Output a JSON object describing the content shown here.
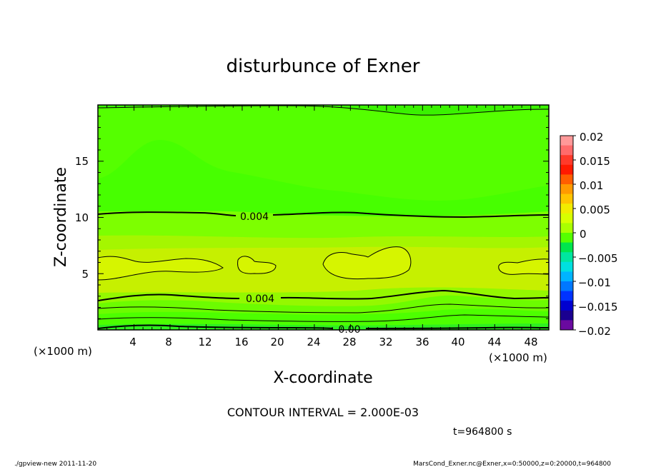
{
  "chart_data": {
    "type": "heatmap",
    "title": "disturbunce of Exner",
    "xlabel": "X-coordinate",
    "ylabel": "Z-coordinate",
    "x_unit": "(×1000 m)",
    "y_unit": "(×1000 m)",
    "xlim": [
      0,
      50
    ],
    "ylim": [
      0,
      20
    ],
    "x_ticks": [
      "4",
      "8",
      "12",
      "16",
      "20",
      "24",
      "28",
      "32",
      "36",
      "40",
      "44",
      "48"
    ],
    "y_ticks": [
      "5",
      "10",
      "15"
    ],
    "colorbar": {
      "range": [
        -0.02,
        0.02
      ],
      "tick_labels": [
        "0.02",
        "0.015",
        "0.01",
        "0.005",
        "0",
        "−0.005",
        "−0.01",
        "−0.015",
        "−0.02"
      ],
      "colors": [
        "#ff9999",
        "#ff6b6b",
        "#ff3a2a",
        "#ff1a00",
        "#ff5e00",
        "#ff9a00",
        "#ffc400",
        "#f2ec00",
        "#d8ff00",
        "#aaff00",
        "#55ff00",
        "#00e64d",
        "#00e6a0",
        "#00e0e0",
        "#00b4ff",
        "#0078ff",
        "#0033ff",
        "#0000d0",
        "#1a0090",
        "#6a0aa0"
      ]
    },
    "bands": [
      {
        "z": [
          0,
          0.35
        ],
        "value": -0.001
      },
      {
        "z": [
          0.35,
          0.9
        ],
        "value": 0.0
      },
      {
        "z": [
          0.9,
          1.6
        ],
        "value": 0.0012
      },
      {
        "z": [
          1.6,
          2.5
        ],
        "value": 0.002
      },
      {
        "z": [
          2.5,
          4.3
        ],
        "value": 0.0035
      },
      {
        "z": [
          4.3,
          6.6
        ],
        "value": 0.0048
      },
      {
        "z": [
          6.6,
          8.4
        ],
        "value": 0.0035
      },
      {
        "z": [
          8.4,
          10.2
        ],
        "value": 0.0025
      },
      {
        "z": [
          10.2,
          12.2
        ],
        "value": 0.0012
      },
      {
        "z": [
          12.2,
          19.7
        ],
        "value": 0.0
      },
      {
        "z": [
          19.7,
          20
        ],
        "value": -0.0005
      }
    ],
    "contour_labels": [
      "0.004",
      "0.004",
      "0.00"
    ],
    "contour_interval_text": "CONTOUR INTERVAL = 2.000E-03",
    "time_text": "t=964800 s"
  },
  "footer": {
    "left": "./gpview-new   2011-11-20",
    "right": "MarsCond_Exner.nc@Exner,x=0:50000,z=0:20000,t=964800"
  },
  "palette": {
    "bg_green": "#55ff00",
    "light_green": "#a8f700",
    "yellow_green": "#d9f400",
    "mid_green": "#2fff00"
  }
}
